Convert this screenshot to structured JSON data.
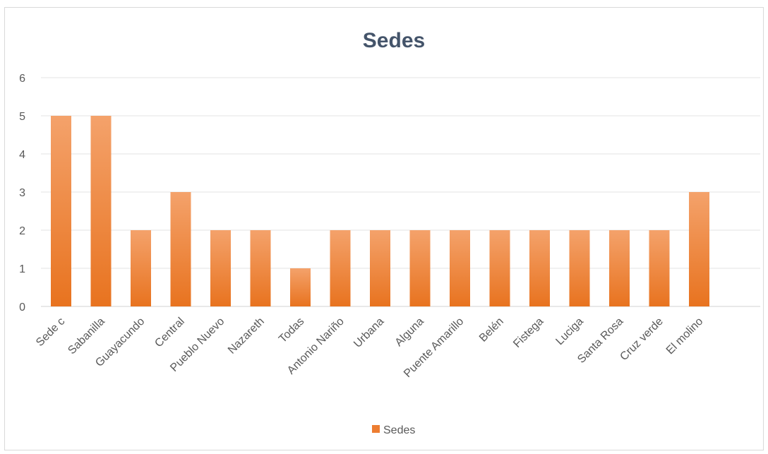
{
  "chart_data": {
    "type": "bar",
    "title": "Sedes",
    "categories": [
      "Sede c",
      "Sabanilla",
      "Guayacundo",
      "Central",
      "Pueblo Nuevo",
      "Nazareth",
      "Todas",
      "Antonio Nariño",
      "Urbana",
      "Alguna",
      "Puente Amarillo",
      "Belén",
      "Fistega",
      "Luciga",
      "Santa Rosa",
      "Cruz verde",
      "El molino"
    ],
    "series": [
      {
        "name": "Sedes",
        "values": [
          5,
          5,
          2,
          3,
          2,
          2,
          1,
          2,
          2,
          2,
          2,
          2,
          2,
          2,
          2,
          2,
          3
        ]
      }
    ],
    "ylim": [
      0,
      6
    ],
    "yticks": [
      0,
      1,
      2,
      3,
      4,
      5,
      6
    ],
    "grid": true,
    "legend": "bottom",
    "colors": {
      "bar_top": "#f4a26b",
      "bar_bottom": "#e8731f",
      "legend": "#ed7d31"
    }
  }
}
